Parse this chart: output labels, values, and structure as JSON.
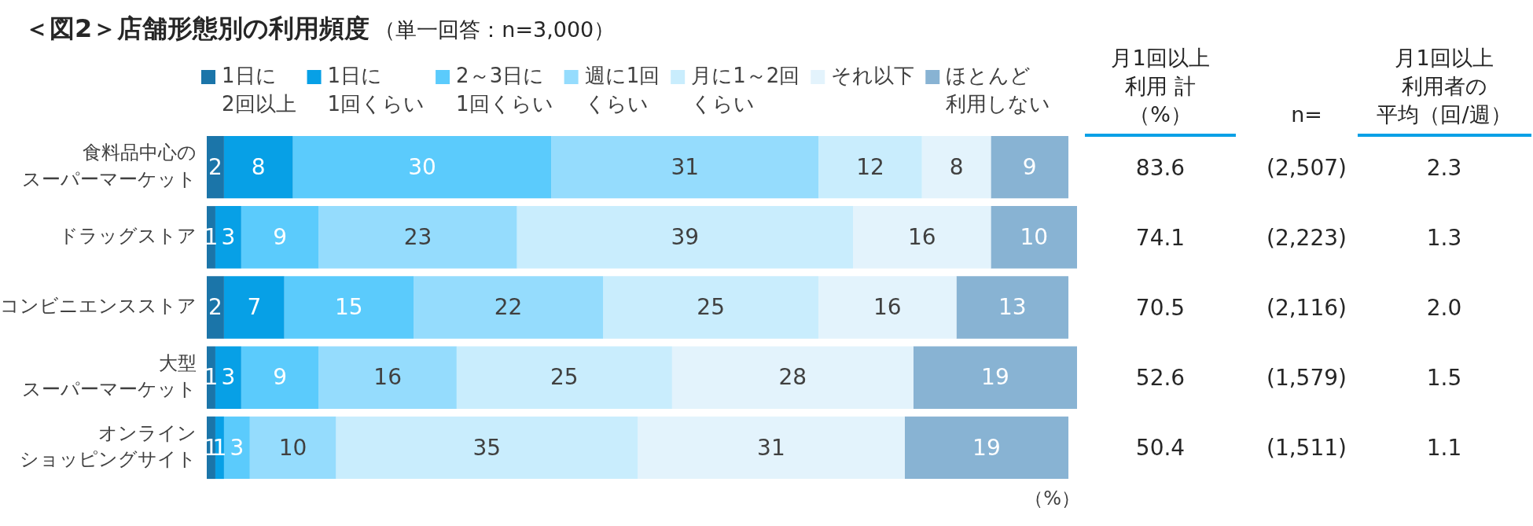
{
  "chart_data": [
    {
      "type": "bar",
      "title": "＜図2＞店舗形態別の利用頻度",
      "subtitle": "（単一回答：n=3,000）",
      "orientation": "horizontal",
      "stacked": true,
      "legend": "top",
      "tick_labels": "y",
      "data_labels": true,
      "annotations": [
        "（%）"
      ],
      "categories": [
        "食料品中心のスーパーマーケット",
        "ドラッグストア",
        "コンビニエンスストア",
        "大型スーパーマーケット",
        "オンラインショッピングサイト"
      ],
      "series": [
        {
          "name": "1日に2回以上",
          "color": "#1b75a9",
          "values": [
            2,
            1,
            2,
            1,
            1
          ]
        },
        {
          "name": "1日に1回くらい",
          "color": "#07a0e6",
          "values": [
            8,
            3,
            7,
            3,
            1
          ]
        },
        {
          "name": "2～3日に1回くらい",
          "color": "#5bcbfc",
          "values": [
            30,
            9,
            15,
            9,
            3
          ]
        },
        {
          "name": "週に1回くらい",
          "color": "#95dcfd",
          "values": [
            31,
            23,
            22,
            16,
            10
          ]
        },
        {
          "name": "月に1～2回くらい",
          "color": "#c9edfd",
          "values": [
            12,
            39,
            25,
            25,
            35
          ]
        },
        {
          "name": "それ以下",
          "color": "#e3f3fc",
          "values": [
            8,
            16,
            16,
            28,
            31
          ]
        },
        {
          "name": "ほとんど利用しない",
          "color": "#88b3d3",
          "values": [
            9,
            10,
            13,
            19,
            19
          ]
        }
      ]
    },
    {
      "type": "other",
      "title": "月1回以上利用 計（%）",
      "values": [
        83.6,
        74.1,
        70.5,
        52.6,
        50.4
      ],
      "data_labels": true
    },
    {
      "type": "other",
      "title": "n=",
      "values": [
        2507,
        2223,
        2116,
        1579,
        1511
      ],
      "value_labels": [
        "(2,507)",
        "(2,223)",
        "(2,116)",
        "(1,579)",
        "(1,511)"
      ]
    },
    {
      "type": "other",
      "title": "月1回以上利用者の平均（回/週）",
      "values": [
        2.3,
        1.3,
        2.0,
        1.5,
        1.1
      ],
      "value_labels": [
        "2.3",
        "1.3",
        "2.0",
        "1.5",
        "1.1"
      ]
    }
  ]
}
